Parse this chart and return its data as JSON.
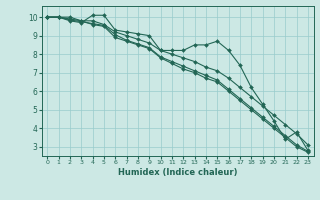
{
  "xlabel": "Humidex (Indice chaleur)",
  "background_color": "#cce8e4",
  "grid_color": "#99cccc",
  "line_color": "#226655",
  "xlim": [
    -0.5,
    23.5
  ],
  "ylim": [
    2.5,
    10.6
  ],
  "xticks": [
    0,
    1,
    2,
    3,
    4,
    5,
    6,
    7,
    8,
    9,
    10,
    11,
    12,
    13,
    14,
    15,
    16,
    17,
    18,
    19,
    20,
    21,
    22,
    23
  ],
  "yticks": [
    3,
    4,
    5,
    6,
    7,
    8,
    9,
    10
  ],
  "series": [
    [
      10.0,
      10.0,
      9.8,
      9.7,
      10.1,
      10.1,
      9.3,
      9.2,
      9.1,
      9.0,
      8.2,
      8.2,
      8.2,
      8.5,
      8.5,
      8.7,
      8.2,
      7.4,
      6.2,
      5.3,
      4.4,
      3.4,
      3.8,
      2.8
    ],
    [
      10.0,
      10.0,
      10.0,
      9.8,
      9.8,
      9.6,
      9.2,
      9.0,
      8.8,
      8.6,
      8.2,
      8.0,
      7.8,
      7.6,
      7.3,
      7.1,
      6.7,
      6.2,
      5.7,
      5.2,
      4.7,
      4.2,
      3.7,
      3.1
    ],
    [
      10.0,
      10.0,
      9.85,
      9.75,
      9.65,
      9.55,
      9.05,
      8.75,
      8.55,
      8.35,
      7.85,
      7.6,
      7.35,
      7.1,
      6.85,
      6.6,
      6.1,
      5.6,
      5.1,
      4.6,
      4.1,
      3.6,
      3.1,
      2.75
    ],
    [
      10.0,
      10.0,
      9.9,
      9.8,
      9.6,
      9.5,
      8.9,
      8.7,
      8.5,
      8.3,
      7.8,
      7.5,
      7.2,
      7.0,
      6.7,
      6.5,
      6.0,
      5.5,
      5.0,
      4.5,
      4.0,
      3.5,
      3.0,
      2.7
    ]
  ],
  "marker": "D",
  "markersize": 2.0,
  "linewidth": 0.8
}
